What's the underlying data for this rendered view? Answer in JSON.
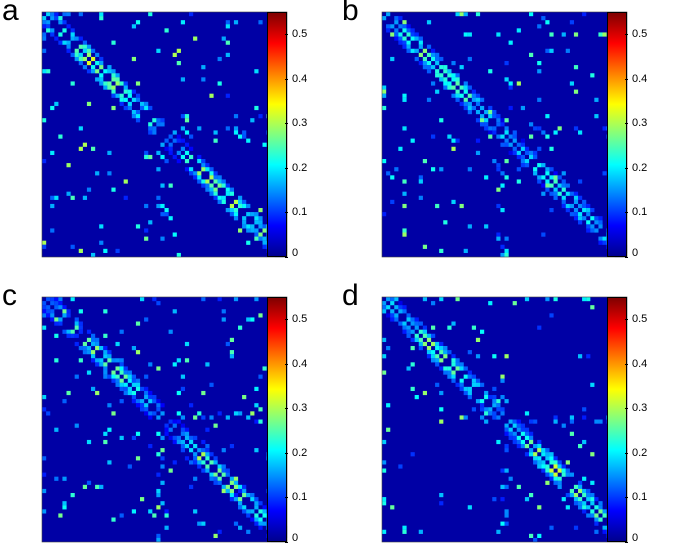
{
  "chart_data": [
    {
      "type": "heatmap",
      "panel": "a",
      "colormap": "jet",
      "n": 60,
      "clim": [
        0,
        0.55
      ],
      "colorbar_ticks": [
        "0",
        "0.1",
        "0.2",
        "0.3",
        "0.4",
        "0.5"
      ],
      "colorbar_values": [
        0,
        0.1,
        0.2,
        0.3,
        0.4,
        0.5
      ],
      "block_split": 30,
      "diag_peak_block1": 0.32,
      "diag_peak_block2": 0.3,
      "seed": 11
    },
    {
      "type": "heatmap",
      "panel": "b",
      "colormap": "jet",
      "n": 60,
      "clim": [
        0,
        0.55
      ],
      "colorbar_ticks": [
        "0",
        "0.1",
        "0.2",
        "0.3",
        "0.4",
        "0.5"
      ],
      "colorbar_values": [
        0,
        0.1,
        0.2,
        0.3,
        0.4,
        0.5
      ],
      "block_split": 30,
      "diag_peak_block1": 0.28,
      "diag_peak_block2": 0.24,
      "seed": 23
    },
    {
      "type": "heatmap",
      "panel": "c",
      "colormap": "jet",
      "n": 60,
      "clim": [
        0,
        0.55
      ],
      "colorbar_ticks": [
        "0",
        "0.1",
        "0.2",
        "0.3",
        "0.4",
        "0.5"
      ],
      "colorbar_values": [
        0,
        0.1,
        0.2,
        0.3,
        0.4,
        0.5
      ],
      "block_split": 30,
      "diag_peak_block1": 0.27,
      "diag_peak_block2": 0.26,
      "seed": 37
    },
    {
      "type": "heatmap",
      "panel": "d",
      "colormap": "jet",
      "n": 60,
      "clim": [
        0,
        0.55
      ],
      "colorbar_ticks": [
        "0",
        "0.1",
        "0.2",
        "0.3",
        "0.4",
        "0.5"
      ],
      "colorbar_values": [
        0,
        0.1,
        0.2,
        0.3,
        0.4,
        0.5
      ],
      "block_split": 30,
      "diag_peak_block1": 0.28,
      "diag_peak_block2": 0.3,
      "seed": 51
    }
  ]
}
